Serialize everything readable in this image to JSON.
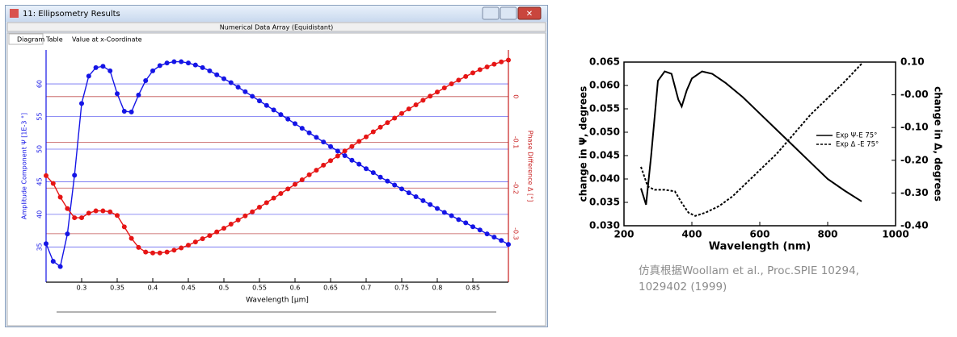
{
  "window": {
    "title": "11: Ellipsometry Results",
    "subtitle": "Numerical Data Array (Equidistant)",
    "tabs": [
      "Diagram",
      "Table",
      "Value at x-Coordinate"
    ]
  },
  "chart_data": [
    {
      "type": "line",
      "xlabel": "Wavelength [µm]",
      "ylabel": "Amplitude Component Ψ [1E-3 °]",
      "y2label": "Phase Difference Δ [°]",
      "xlim": [
        0.25,
        0.9
      ],
      "xticks": [
        0.3,
        0.35,
        0.4,
        0.45,
        0.5,
        0.55,
        0.6,
        0.65,
        0.7,
        0.75,
        0.8,
        0.85
      ],
      "ylim": [
        29.6,
        65.2
      ],
      "yticks": [
        35,
        40,
        45,
        50,
        55,
        60
      ],
      "y2lim": [
        -0.406,
        0.102
      ],
      "y2ticks": [
        0,
        -0.1,
        -0.2,
        -0.3
      ],
      "grid": true,
      "markers": true,
      "x": [
        0.25,
        0.26,
        0.27,
        0.28,
        0.29,
        0.3,
        0.31,
        0.32,
        0.33,
        0.34,
        0.35,
        0.36,
        0.37,
        0.38,
        0.39,
        0.4,
        0.41,
        0.42,
        0.43,
        0.44,
        0.45,
        0.46,
        0.47,
        0.48,
        0.49,
        0.5,
        0.51,
        0.52,
        0.53,
        0.54,
        0.55,
        0.56,
        0.57,
        0.58,
        0.59,
        0.6,
        0.61,
        0.62,
        0.63,
        0.64,
        0.65,
        0.66,
        0.67,
        0.68,
        0.69,
        0.7,
        0.71,
        0.72,
        0.73,
        0.74,
        0.75,
        0.76,
        0.77,
        0.78,
        0.79,
        0.8,
        0.81,
        0.82,
        0.83,
        0.84,
        0.85,
        0.86,
        0.87,
        0.88,
        0.89,
        0.9
      ],
      "series": [
        {
          "color": "#1515e6",
          "axis": "y",
          "values": [
            35.5,
            32.8,
            32,
            37,
            46,
            57,
            61.2,
            62.5,
            62.7,
            62,
            58.5,
            55.8,
            55.7,
            58.3,
            60.5,
            62,
            62.8,
            63.2,
            63.4,
            63.4,
            63.2,
            62.9,
            62.5,
            62,
            61.4,
            60.8,
            60.2,
            59.5,
            58.8,
            58.1,
            57.4,
            56.7,
            56,
            55.3,
            54.6,
            53.9,
            53.2,
            52.5,
            51.8,
            51.1,
            50.4,
            49.7,
            49,
            48.3,
            47.7,
            47,
            46.4,
            45.7,
            45.1,
            44.5,
            43.9,
            43.3,
            42.7,
            42.1,
            41.5,
            40.9,
            40.3,
            39.8,
            39.2,
            38.7,
            38.1,
            37.6,
            37,
            36.5,
            36,
            35.4
          ]
        },
        {
          "color": "#e61515",
          "axis": "y2",
          "values": [
            -0.173,
            -0.19,
            -0.22,
            -0.245,
            -0.265,
            -0.265,
            -0.255,
            -0.25,
            -0.25,
            -0.252,
            -0.26,
            -0.285,
            -0.31,
            -0.33,
            -0.34,
            -0.342,
            -0.342,
            -0.34,
            -0.336,
            -0.331,
            -0.325,
            -0.318,
            -0.311,
            -0.304,
            -0.296,
            -0.288,
            -0.279,
            -0.27,
            -0.261,
            -0.252,
            -0.242,
            -0.232,
            -0.222,
            -0.212,
            -0.202,
            -0.192,
            -0.182,
            -0.171,
            -0.161,
            -0.15,
            -0.14,
            -0.13,
            -0.119,
            -0.109,
            -0.098,
            -0.088,
            -0.077,
            -0.067,
            -0.057,
            -0.047,
            -0.037,
            -0.027,
            -0.018,
            -0.008,
            0.001,
            0.01,
            0.019,
            0.028,
            0.036,
            0.044,
            0.052,
            0.059,
            0.065,
            0.071,
            0.076,
            0.08
          ]
        }
      ]
    },
    {
      "type": "line",
      "xlabel": "Wavelength (nm)",
      "ylabel": "change in Ψ, degrees",
      "y2label": "change in Δ, degrees",
      "xlim": [
        200,
        1000
      ],
      "xticks": [
        200,
        400,
        600,
        800,
        1000
      ],
      "ylim": [
        0.03,
        0.065
      ],
      "yticks": [
        {
          "value": 0.03,
          "label": "0.030"
        },
        {
          "value": 0.035,
          "label": "0.035"
        },
        {
          "value": 0.04,
          "label": "0.040"
        },
        {
          "value": 0.045,
          "label": "0.045"
        },
        {
          "value": 0.05,
          "label": "0.050"
        },
        {
          "value": 0.055,
          "label": "0.055"
        },
        {
          "value": 0.06,
          "label": "0.060"
        },
        {
          "value": 0.065,
          "label": "0.065"
        }
      ],
      "y2lim": [
        -0.4,
        0.1
      ],
      "y2ticks": [
        {
          "value": -0.4,
          "label": "-0.40"
        },
        {
          "value": -0.3,
          "label": "-0.30"
        },
        {
          "value": -0.2,
          "label": "-0.20"
        },
        {
          "value": -0.1,
          "label": "-0.10"
        },
        {
          "value": 0,
          "label": "-0.00"
        },
        {
          "value": 0.1,
          "label": "0.10"
        }
      ],
      "grid": false,
      "markers": false,
      "series": [
        {
          "name": "Exp Ψ-E 75°",
          "color": "#000000",
          "style": "solid",
          "axis": "y",
          "x": [
            250,
            265,
            280,
            300,
            320,
            340,
            360,
            370,
            385,
            400,
            430,
            460,
            500,
            550,
            600,
            650,
            700,
            750,
            800,
            850,
            900
          ],
          "values": [
            0.038,
            0.0345,
            0.045,
            0.061,
            0.063,
            0.0625,
            0.057,
            0.0555,
            0.059,
            0.0615,
            0.063,
            0.0625,
            0.0605,
            0.0575,
            0.054,
            0.0505,
            0.047,
            0.0435,
            0.04,
            0.0375,
            0.0352
          ]
        },
        {
          "name": "Exp Δ -E 75°",
          "color": "#000000",
          "style": "dashed",
          "axis": "y2",
          "x": [
            250,
            270,
            290,
            320,
            350,
            370,
            390,
            410,
            440,
            480,
            520,
            560,
            600,
            650,
            700,
            750,
            800,
            850,
            900
          ],
          "values": [
            -0.22,
            -0.28,
            -0.29,
            -0.29,
            -0.295,
            -0.33,
            -0.36,
            -0.37,
            -0.36,
            -0.34,
            -0.31,
            -0.27,
            -0.23,
            -0.18,
            -0.12,
            -0.06,
            -0.01,
            0.04,
            0.095
          ]
        }
      ]
    }
  ],
  "caption": "仿真根据Woollam et al., Proc.SPIE 10294, 1029402 (1999)"
}
